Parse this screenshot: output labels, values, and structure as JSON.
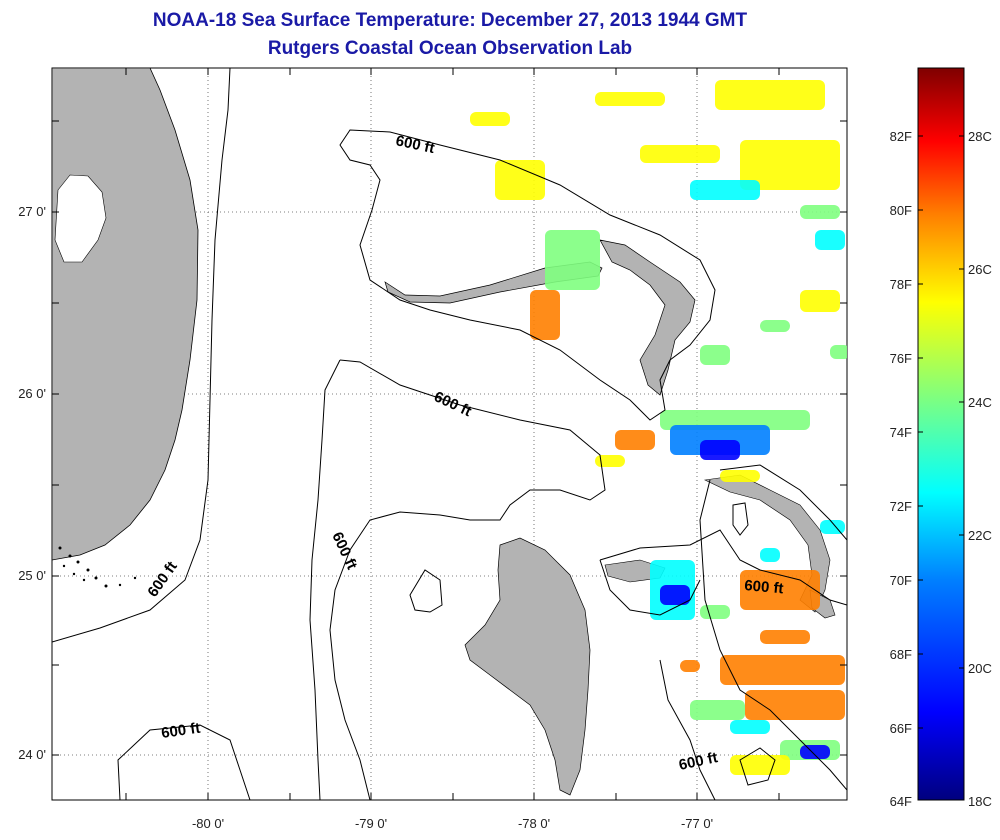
{
  "title": "NOAA-18 Sea Surface Temperature:  December 27, 2013 1944 GMT",
  "subtitle": "Rutgers Coastal Ocean Observation Lab",
  "map": {
    "lon_ticks": [
      "-80 0'",
      "-79 0'",
      "-78 0'",
      "-77 0'"
    ],
    "lat_ticks": [
      "27 0'",
      "26 0'",
      "25 0'",
      "24 0'"
    ],
    "contour_labels": [
      "600 ft",
      "600 ft",
      "600 ft",
      "600 ft",
      "600 ft",
      "600 ft",
      "600 ft"
    ]
  },
  "colorbar": {
    "fahrenheit_ticks": [
      "82F",
      "80F",
      "78F",
      "76F",
      "74F",
      "72F",
      "70F",
      "68F",
      "66F",
      "64F"
    ],
    "celsius_ticks": [
      "28C",
      "26C",
      "24C",
      "22C",
      "20C",
      "18C"
    ],
    "colors": [
      "#00007f",
      "#0000ff",
      "#007fff",
      "#00ffff",
      "#7fff7f",
      "#ffff00",
      "#ff7f00",
      "#ff0000",
      "#7f0000"
    ]
  },
  "colors": {
    "title": "#1a1aa6",
    "land": "#b3b3b3"
  }
}
